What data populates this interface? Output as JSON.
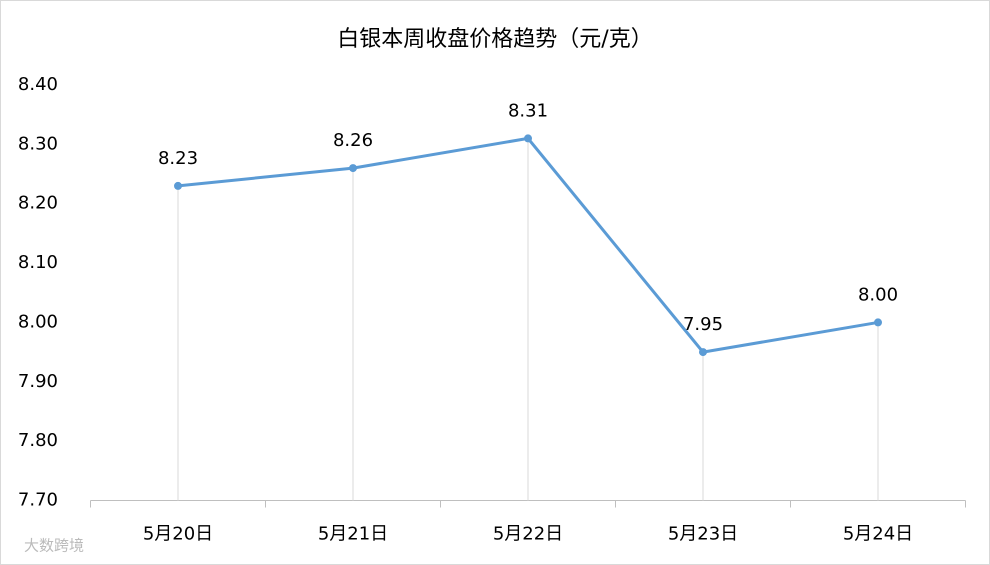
{
  "chart_data": {
    "type": "line",
    "title": "白银本周收盘价格趋势（元/克）",
    "categories": [
      "5月20日",
      "5月21日",
      "5月22日",
      "5月23日",
      "5月24日"
    ],
    "series": [
      {
        "color": "#5b9bd5",
        "values": [
          8.23,
          8.26,
          8.31,
          7.95,
          8.0
        ],
        "value_labels": [
          "8.23",
          "8.26",
          "8.31",
          "7.95",
          "8.00"
        ]
      }
    ],
    "ylim": [
      7.7,
      8.4
    ],
    "yticks": [
      {
        "value": 7.7,
        "label": "7.70"
      },
      {
        "value": 7.8,
        "label": "7.80"
      },
      {
        "value": 7.9,
        "label": "7.90"
      },
      {
        "value": 8.0,
        "label": "8.00"
      },
      {
        "value": 8.1,
        "label": "8.10"
      },
      {
        "value": 8.2,
        "label": "8.20"
      },
      {
        "value": 8.3,
        "label": "8.30"
      },
      {
        "value": 8.4,
        "label": "8.40"
      }
    ],
    "drop_lines": true,
    "watermark": "大数跨境"
  }
}
